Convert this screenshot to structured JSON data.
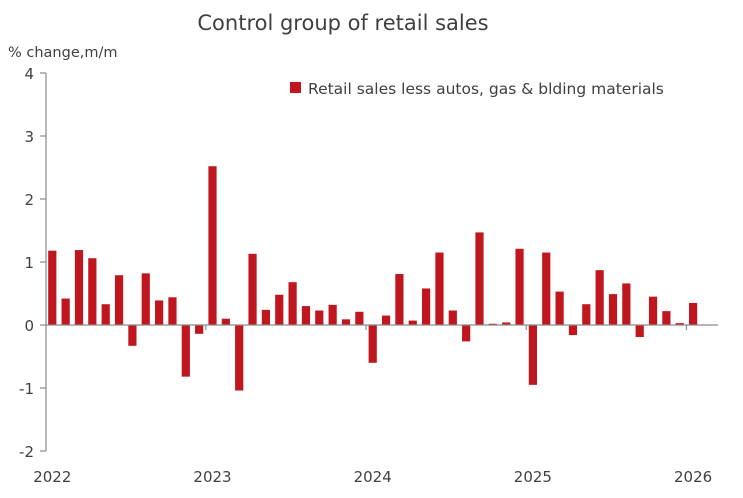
{
  "chart_data": {
    "type": "bar",
    "title": "Control group of retail sales",
    "ylabel": "% change,m/m",
    "xlabel": "",
    "ylim": [
      -2,
      4
    ],
    "yticks": [
      4,
      3,
      2,
      1,
      0,
      -1,
      -2
    ],
    "xtick_labels": [
      "2022",
      "2023",
      "2024",
      "2025",
      "2026"
    ],
    "grid": false,
    "legend": {
      "position": "top-right"
    },
    "color": "#C0171F",
    "series": [
      {
        "name": "Retail sales less autos, gas & blding materials",
        "categories": [
          "2022-01",
          "2022-02",
          "2022-03",
          "2022-04",
          "2022-05",
          "2022-06",
          "2022-07",
          "2022-08",
          "2022-09",
          "2022-10",
          "2022-11",
          "2022-12",
          "2023-01",
          "2023-02",
          "2023-03",
          "2023-04",
          "2023-05",
          "2023-06",
          "2023-07",
          "2023-08",
          "2023-09",
          "2023-10",
          "2023-11",
          "2023-12",
          "2024-01",
          "2024-02",
          "2024-03",
          "2024-04",
          "2024-05",
          "2024-06",
          "2024-07",
          "2024-08",
          "2024-09",
          "2024-10",
          "2024-11",
          "2024-12",
          "2025-01",
          "2025-02",
          "2025-03",
          "2025-04",
          "2025-05",
          "2025-06",
          "2025-07",
          "2025-08",
          "2025-09",
          "2025-10",
          "2025-11",
          "2025-12",
          "2026-01"
        ],
        "values": [
          1.18,
          0.42,
          1.19,
          1.06,
          0.33,
          0.79,
          -0.33,
          0.82,
          0.39,
          0.44,
          -0.82,
          -0.14,
          2.52,
          0.1,
          -1.04,
          1.13,
          0.24,
          0.48,
          0.68,
          0.3,
          0.23,
          0.32,
          0.09,
          0.21,
          -0.6,
          0.15,
          0.81,
          0.07,
          0.58,
          1.15,
          0.23,
          -0.26,
          1.47,
          0.02,
          0.04,
          1.21,
          -0.95,
          1.15,
          0.53,
          -0.16,
          0.33,
          0.87,
          0.49,
          0.66,
          -0.19,
          0.45,
          0.22,
          0.03,
          0.35
        ]
      }
    ]
  }
}
